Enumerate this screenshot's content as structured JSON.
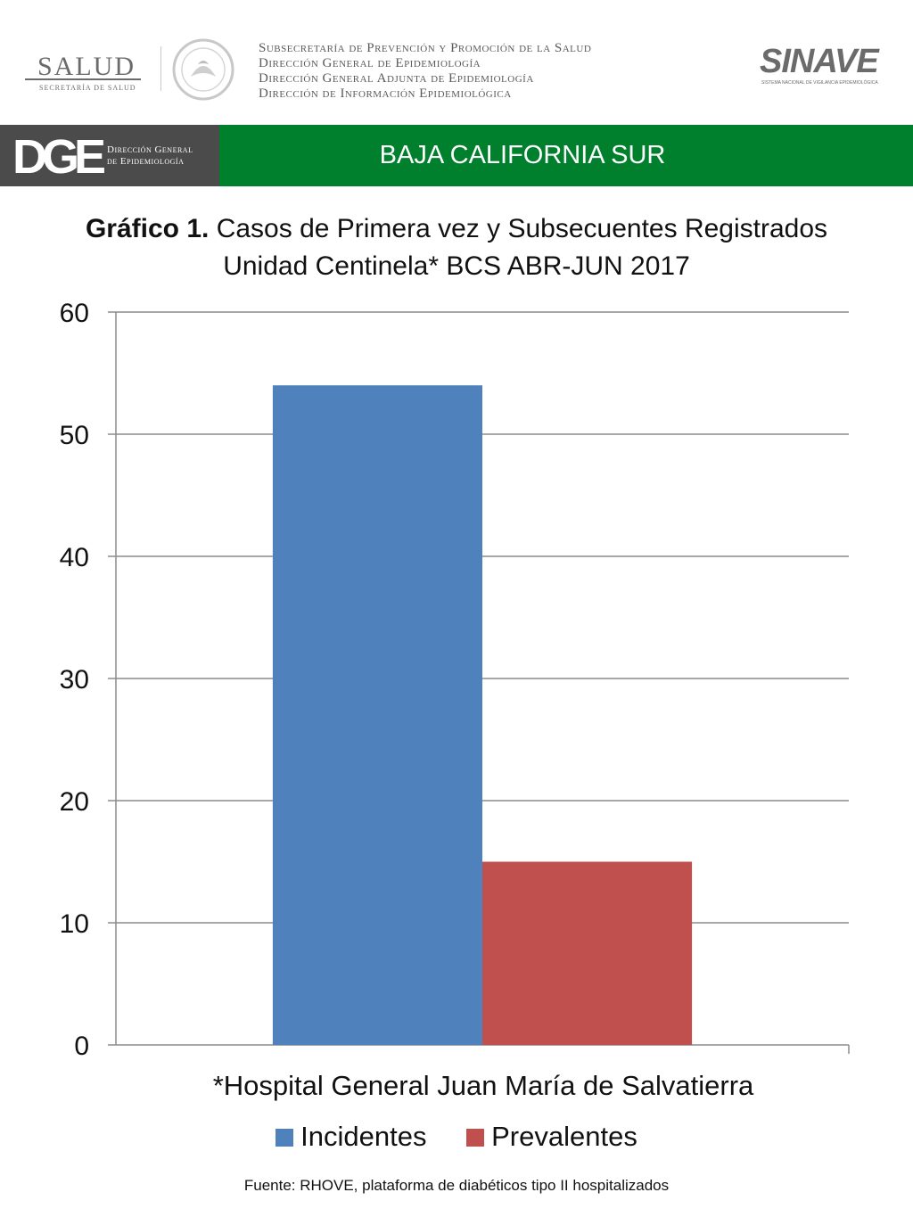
{
  "header": {
    "salud_title": "SALUD",
    "salud_subtitle": "SECRETARÍA DE SALUD",
    "subsecretaria_lines": [
      "Subsecretaría de Prevención y Promoción de la Salud",
      "Dirección General de Epidemiología",
      "Dirección General Adjunta de Epidemiología",
      "Dirección de Información Epidemiológica"
    ],
    "sinave_word": "SINAVE",
    "sinave_subtitle": "SISTEMA NACIONAL DE VIGILANCIA EPIDEMIOLÓGICA"
  },
  "banner": {
    "dge_letters": "DGE",
    "dge_text_line1": "Dirección General",
    "dge_text_line2": "de Epidemiología",
    "state": "BAJA CALIFORNIA SUR",
    "color": "#00802c"
  },
  "chart_data": {
    "type": "bar",
    "title_bold": "Gráfico 1.",
    "title_rest": " Casos de Primera vez y Subsecuentes Registrados",
    "title_line2": "Unidad Centinela* BCS ABR-JUN 2017",
    "categories": [
      "*Hospital General Juan María de Salvatierra"
    ],
    "series": [
      {
        "name": "Incidentes",
        "values": [
          54
        ],
        "color": "#4f81bd"
      },
      {
        "name": "Prevalentes",
        "values": [
          15
        ],
        "color": "#c0504d"
      }
    ],
    "ylim": [
      0,
      60
    ],
    "yticks": [
      0,
      10,
      20,
      30,
      40,
      50,
      60
    ],
    "grid": true,
    "legend_position": "bottom"
  },
  "footer": {
    "source": "Fuente: RHOVE, plataforma de diabéticos tipo II hospitalizados"
  }
}
